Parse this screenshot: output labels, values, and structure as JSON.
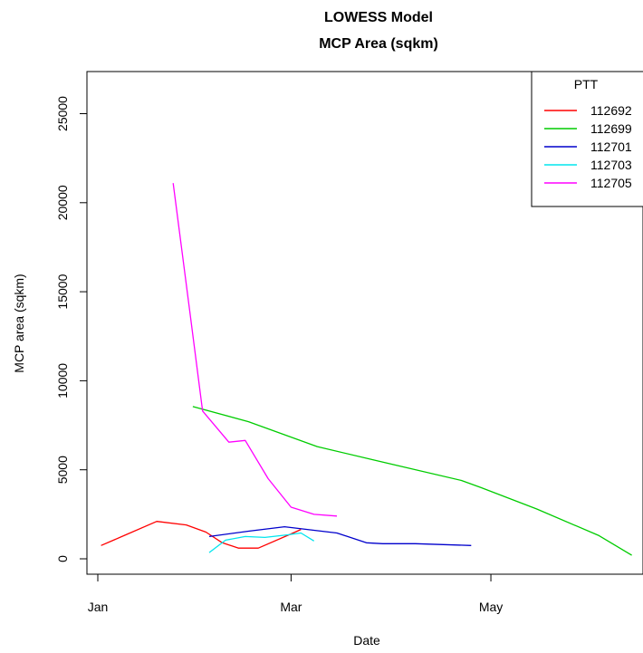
{
  "chart_data": {
    "type": "line",
    "title": "LOWESS Model",
    "subtitle": "MCP Area (sqkm)",
    "xlabel": "Date",
    "ylabel": "MCP area (sqkm)",
    "x_ticks": [
      "Jan",
      "Mar",
      "May"
    ],
    "y_ticks": [
      "0",
      "5000",
      "10000",
      "15000",
      "20000",
      "25000"
    ],
    "ylim": [
      -800,
      27500
    ],
    "legend": {
      "title": "PTT",
      "placement": "top-right"
    },
    "series": [
      {
        "name": "112692",
        "color": "#ff0000",
        "points": [
          [
            "Jan 2",
            750
          ],
          [
            "Jan 9",
            1300
          ],
          [
            "Jan 19",
            2100
          ],
          [
            "Jan 28",
            1900
          ],
          [
            "Feb 3",
            1500
          ],
          [
            "Feb 8",
            900
          ],
          [
            "Feb 13",
            600
          ],
          [
            "Feb 19",
            600
          ],
          [
            "Mar 1",
            1400
          ],
          [
            "Mar 4",
            1650
          ]
        ]
      },
      {
        "name": "112699",
        "color": "#00cc00",
        "points": [
          [
            "Jan 30",
            8550
          ],
          [
            "Feb 16",
            7700
          ],
          [
            "Mar 9",
            6300
          ],
          [
            "Apr 1",
            5300
          ],
          [
            "Apr 22",
            4400
          ],
          [
            "Apr 28",
            4000
          ],
          [
            "May 15",
            2800
          ],
          [
            "Jun 3",
            1300
          ],
          [
            "Jun 13",
            200
          ]
        ]
      },
      {
        "name": "112701",
        "color": "#0000cc",
        "points": [
          [
            "Feb 4",
            1250
          ],
          [
            "Feb 16",
            1550
          ],
          [
            "Feb 27",
            1800
          ],
          [
            "Mar 8",
            1600
          ],
          [
            "Mar 15",
            1450
          ],
          [
            "Mar 24",
            900
          ],
          [
            "Mar 29",
            850
          ],
          [
            "Apr 8",
            850
          ],
          [
            "Apr 25",
            750
          ]
        ]
      },
      {
        "name": "112703",
        "color": "#00e5ee",
        "points": [
          [
            "Feb 4",
            350
          ],
          [
            "Feb 9",
            1050
          ],
          [
            "Feb 15",
            1250
          ],
          [
            "Feb 21",
            1200
          ],
          [
            "Feb 28",
            1350
          ],
          [
            "Mar 4",
            1450
          ],
          [
            "Mar 8",
            1000
          ]
        ]
      },
      {
        "name": "112705",
        "color": "#ff00ff",
        "points": [
          [
            "Jan 24",
            21100
          ],
          [
            "Jan 29",
            14000
          ],
          [
            "Feb 2",
            8300
          ],
          [
            "Feb 10",
            6550
          ],
          [
            "Feb 15",
            6650
          ],
          [
            "Feb 22",
            4500
          ],
          [
            "Mar 1",
            2900
          ],
          [
            "Mar 8",
            2500
          ],
          [
            "Mar 15",
            2400
          ]
        ]
      }
    ]
  }
}
